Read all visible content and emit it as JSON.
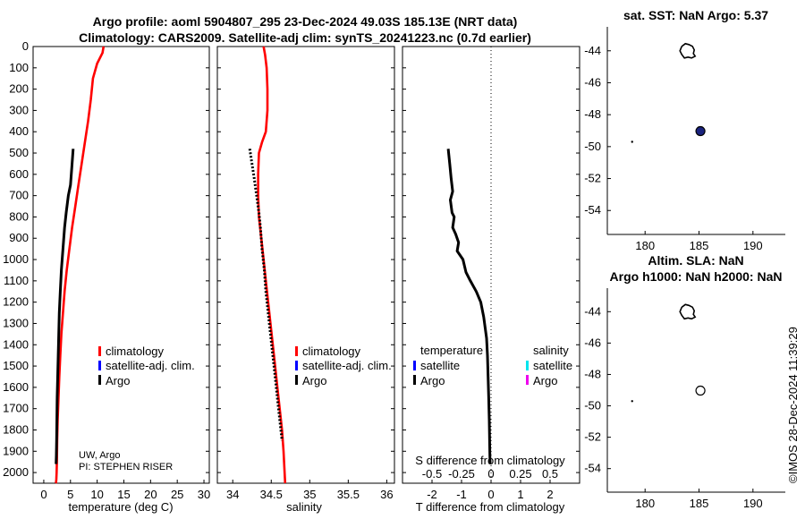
{
  "header": {
    "line1": "Argo profile: aoml 5904807_295 23-Dec-2024 49.03S 185.13E (NRT data)",
    "line2": "Climatology: CARS2009. Satellite-adj clim: synTS_20241223.nc (0.7d earlier)"
  },
  "colors": {
    "climatology": "#ff0000",
    "satellite": "#0000ff",
    "argo": "#000000",
    "sal_satellite": "#00e5ee",
    "sal_argo": "#ee00ee",
    "marker_fill": "#1a237e"
  },
  "chart_data": [
    {
      "id": "temperature",
      "type": "line",
      "xlabel": "temperature (deg C)",
      "ylabel": "",
      "xlim": [
        -2,
        31
      ],
      "ylim": [
        0,
        2050
      ],
      "xticks": [
        0,
        5,
        10,
        15,
        20,
        25,
        30
      ],
      "yticks": [
        0,
        100,
        200,
        300,
        400,
        500,
        600,
        700,
        800,
        900,
        1000,
        1100,
        1200,
        1300,
        1400,
        1500,
        1600,
        1700,
        1800,
        1900,
        2000
      ],
      "legend": [
        "climatology",
        "satellite-adj. clim.",
        "Argo"
      ],
      "annotation": [
        "UW, Argo",
        "PI: STEPHEN RISER"
      ],
      "series": [
        {
          "name": "climatology",
          "x": [
            11.2,
            11.0,
            10.0,
            9.2,
            8.8,
            8.3,
            7.7,
            7.1,
            6.5,
            5.9,
            5.3,
            4.8,
            4.3,
            3.9,
            3.6,
            3.3,
            3.1,
            2.9,
            2.75,
            2.6,
            2.5,
            2.45,
            2.4,
            2.35,
            2.3,
            2.25,
            2.2
          ],
          "y": [
            0,
            30,
            80,
            150,
            250,
            350,
            450,
            550,
            650,
            750,
            850,
            950,
            1050,
            1150,
            1250,
            1350,
            1450,
            1550,
            1650,
            1750,
            1850,
            1950,
            2000,
            2030,
            2045,
            2048,
            2050
          ]
        },
        {
          "name": "Argo",
          "x": [
            5.5,
            5.3,
            5.0,
            4.6,
            4.2,
            3.9,
            3.6,
            3.3,
            3.1,
            2.9,
            2.8,
            2.7,
            2.6,
            2.5,
            2.45,
            2.4,
            2.35,
            2.3
          ],
          "y": [
            480,
            550,
            650,
            700,
            780,
            850,
            950,
            1050,
            1150,
            1250,
            1350,
            1450,
            1550,
            1650,
            1750,
            1850,
            1920,
            1960
          ]
        }
      ]
    },
    {
      "id": "salinity",
      "type": "line",
      "xlabel": "salinity",
      "xlim": [
        33.8,
        36.1
      ],
      "ylim": [
        0,
        2050
      ],
      "xticks": [
        34,
        34.5,
        35,
        35.5,
        36
      ],
      "xtick_labels": [
        "34",
        "34.5",
        "35",
        "35.5",
        "36"
      ],
      "legend": [
        "climatology",
        "satellite-adj. clim.",
        "Argo"
      ],
      "series": [
        {
          "name": "climatology",
          "x": [
            34.4,
            34.42,
            34.44,
            34.45,
            34.45,
            34.43,
            34.38,
            34.34,
            34.33,
            34.33,
            34.34,
            34.37,
            34.4,
            34.43,
            34.46,
            34.49,
            34.52,
            34.55,
            34.58,
            34.61,
            34.64,
            34.66,
            34.68
          ],
          "y": [
            0,
            40,
            100,
            200,
            300,
            400,
            450,
            500,
            600,
            700,
            800,
            900,
            1000,
            1100,
            1200,
            1300,
            1400,
            1500,
            1600,
            1700,
            1800,
            1900,
            2050
          ]
        },
        {
          "name": "Argo",
          "x": [
            34.22,
            34.25,
            34.28,
            34.31,
            34.34,
            34.36,
            34.38,
            34.41,
            34.43,
            34.46,
            34.49,
            34.52,
            34.55,
            34.58,
            34.61,
            34.64
          ],
          "y": [
            480,
            550,
            620,
            700,
            780,
            850,
            950,
            1050,
            1150,
            1250,
            1350,
            1450,
            1550,
            1650,
            1750,
            1850
          ]
        }
      ]
    },
    {
      "id": "difference",
      "type": "line",
      "xlabel": "T difference from climatology",
      "top_xlabel": "S difference from climatology",
      "xlim": [
        -3,
        3
      ],
      "ylim": [
        0,
        2050
      ],
      "xticks": [
        -2,
        -1,
        0,
        1,
        2
      ],
      "top_xticks": [
        -0.5,
        -0.25,
        0,
        0.25,
        0.5
      ],
      "top_xtick_labels": [
        "-0.5",
        "-0.25",
        "0",
        "0.25",
        "0.5"
      ],
      "legend_temperature_title": "temperature",
      "legend_salinity_title": "salinity",
      "legend_temperature": [
        "satellite",
        "Argo"
      ],
      "legend_salinity": [
        "satellite",
        "Argo"
      ],
      "series": [
        {
          "name": "T difference Argo",
          "x": [
            -1.45,
            -1.4,
            -1.35,
            -1.3,
            -1.38,
            -1.32,
            -1.25,
            -1.3,
            -1.2,
            -1.1,
            -1.15,
            -0.95,
            -0.85,
            -0.7,
            -0.5,
            -0.35,
            -0.25,
            -0.2,
            -0.15,
            -0.12,
            -0.1,
            -0.08,
            -0.06,
            -0.05,
            -0.04,
            -0.03
          ],
          "y": [
            480,
            550,
            620,
            680,
            720,
            780,
            800,
            850,
            880,
            920,
            960,
            1000,
            1060,
            1100,
            1150,
            1200,
            1270,
            1320,
            1370,
            1450,
            1550,
            1650,
            1750,
            1850,
            1920,
            1960
          ]
        }
      ]
    },
    {
      "id": "map_sst",
      "type": "scatter",
      "title": "sat. SST: NaN Argo: 5.37",
      "xlim": [
        176.5,
        193
      ],
      "ylim": [
        -55.5,
        -42.5
      ],
      "xticks": [
        180,
        185,
        190
      ],
      "yticks": [
        -44,
        -46,
        -48,
        -50,
        -52,
        -54
      ],
      "profile_location": {
        "lon": 185.13,
        "lat": -49.03
      },
      "coast_points": [
        {
          "lon": 178.8,
          "lat": -49.7
        }
      ]
    },
    {
      "id": "map_sla",
      "type": "scatter",
      "title_line1": "Altim. SLA: NaN",
      "title_line2": "Argo h1000: NaN h2000: NaN",
      "xlim": [
        176.5,
        193
      ],
      "ylim": [
        -55.5,
        -42.5
      ],
      "xticks": [
        180,
        185,
        190
      ],
      "yticks": [
        -44,
        -46,
        -48,
        -50,
        -52,
        -54
      ],
      "profile_location": {
        "lon": 185.13,
        "lat": -49.03
      },
      "coast_points": [
        {
          "lon": 178.8,
          "lat": -49.7
        }
      ]
    }
  ],
  "footer": {
    "credit": "©IMOS 28-Dec-2024 11:39:29"
  }
}
